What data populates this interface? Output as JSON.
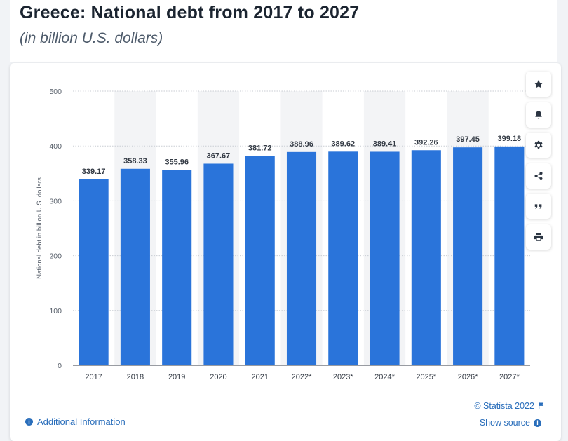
{
  "header": {
    "title": "Greece: National debt from 2017 to 2027",
    "subtitle": "(in billion U.S. dollars)"
  },
  "colors": {
    "bar": "#2a74da",
    "shade": "#f3f4f6",
    "grid": "#c9cdd3",
    "link": "#2a6ebb"
  },
  "toolbar": {
    "icons": [
      "star-icon",
      "bell-icon",
      "gear-icon",
      "share-icon",
      "quote-icon",
      "print-icon"
    ]
  },
  "footer": {
    "additional_info": "Additional Information",
    "credit": "© Statista 2022",
    "show_source": "Show source"
  },
  "chart_data": {
    "type": "bar",
    "categories": [
      "2017",
      "2018",
      "2019",
      "2020",
      "2021",
      "2022*",
      "2023*",
      "2024*",
      "2025*",
      "2026*",
      "2027*"
    ],
    "values": [
      339.17,
      358.33,
      355.96,
      367.67,
      381.72,
      388.96,
      389.62,
      389.41,
      392.26,
      397.45,
      399.18
    ],
    "value_labels": [
      "339.17",
      "358.33",
      "355.96",
      "367.67",
      "381.72",
      "388.96",
      "389.62",
      "389.41",
      "392.26",
      "397.45",
      "399.18"
    ],
    "ylabel": "National debt in billion U.S. dollars",
    "yticks": [
      "0",
      "100",
      "200",
      "300",
      "400",
      "500"
    ],
    "ylim": [
      0,
      500
    ],
    "grid": true
  }
}
